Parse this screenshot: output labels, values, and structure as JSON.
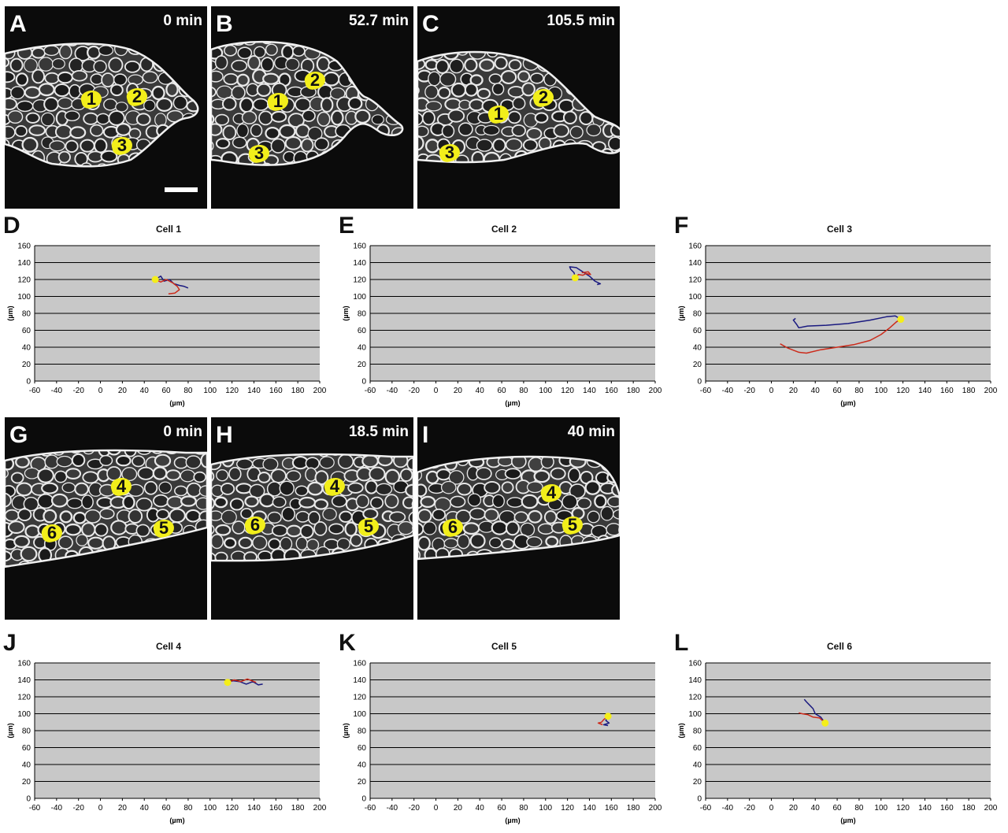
{
  "image_panels": [
    {
      "id": "A",
      "letter": "A",
      "time": "0 min",
      "left": 6,
      "top": 8,
      "cells": [
        {
          "n": "1",
          "x": 95,
          "y": 104
        },
        {
          "n": "2",
          "x": 153,
          "y": 101
        },
        {
          "n": "3",
          "x": 134,
          "y": 163
        }
      ],
      "scalebar": true
    },
    {
      "id": "B",
      "letter": "B",
      "time": "52.7 min",
      "left": 268,
      "top": 8,
      "cells": [
        {
          "n": "1",
          "x": 70,
          "y": 107
        },
        {
          "n": "2",
          "x": 117,
          "y": 80
        },
        {
          "n": "3",
          "x": 46,
          "y": 173
        }
      ],
      "scalebar": false
    },
    {
      "id": "C",
      "letter": "C",
      "time": "105.5 min",
      "left": 530,
      "top": 8,
      "cells": [
        {
          "n": "1",
          "x": 88,
          "y": 123
        },
        {
          "n": "2",
          "x": 145,
          "y": 102
        },
        {
          "n": "3",
          "x": 26,
          "y": 172
        }
      ],
      "scalebar": false
    },
    {
      "id": "G",
      "letter": "G",
      "time": "0 min",
      "left": 6,
      "top": 530,
      "cells": [
        {
          "n": "4",
          "x": 133,
          "y": 74
        },
        {
          "n": "6",
          "x": 45,
          "y": 133
        },
        {
          "n": "5",
          "x": 187,
          "y": 127
        }
      ],
      "scalebar": false
    },
    {
      "id": "H",
      "letter": "H",
      "time": "18.5 min",
      "left": 268,
      "top": 530,
      "cells": [
        {
          "n": "4",
          "x": 142,
          "y": 74
        },
        {
          "n": "6",
          "x": 41,
          "y": 123
        },
        {
          "n": "5",
          "x": 185,
          "y": 125
        }
      ],
      "scalebar": false
    },
    {
      "id": "I",
      "letter": "I",
      "time": "40 min",
      "left": 530,
      "top": 530,
      "cells": [
        {
          "n": "4",
          "x": 155,
          "y": 82
        },
        {
          "n": "6",
          "x": 30,
          "y": 126
        },
        {
          "n": "5",
          "x": 182,
          "y": 123
        }
      ],
      "scalebar": false
    }
  ],
  "chart_data": [
    {
      "type": "line",
      "letter": "D",
      "title": "Cell 1",
      "xlabel": "(µm)",
      "ylabel": "(µm)",
      "xlim": [
        -60,
        200
      ],
      "ylim": [
        0,
        160
      ],
      "xticks": [
        "-60",
        "-40",
        "-20",
        "0",
        "20",
        "40",
        "60",
        "80",
        "100",
        "120",
        "140",
        "160",
        "180",
        "200"
      ],
      "yticks": [
        "0",
        "20",
        "40",
        "60",
        "80",
        "100",
        "120",
        "140",
        "160"
      ],
      "start": [
        50,
        120
      ],
      "series": [
        {
          "color": "#1a1a80",
          "points": [
            [
              50,
              120
            ],
            [
              55,
              124
            ],
            [
              58,
              118
            ],
            [
              63,
              120
            ],
            [
              67,
              115
            ],
            [
              72,
              113
            ],
            [
              76,
              112
            ],
            [
              80,
              110
            ]
          ]
        },
        {
          "color": "#cc2a1a",
          "points": [
            [
              50,
              120
            ],
            [
              55,
              117
            ],
            [
              60,
              120
            ],
            [
              66,
              116
            ],
            [
              70,
              112
            ],
            [
              72,
              108
            ],
            [
              68,
              104
            ],
            [
              62,
              103
            ]
          ]
        }
      ]
    },
    {
      "type": "line",
      "letter": "E",
      "title": "Cell 2",
      "xlabel": "(µm)",
      "ylabel": "(µm)",
      "xlim": [
        -60,
        200
      ],
      "ylim": [
        0,
        160
      ],
      "xticks": [
        "-60",
        "-40",
        "-20",
        "0",
        "20",
        "40",
        "60",
        "80",
        "100",
        "120",
        "140",
        "160",
        "180",
        "200"
      ],
      "yticks": [
        "0",
        "20",
        "40",
        "60",
        "80",
        "100",
        "120",
        "140",
        "160"
      ],
      "start": [
        127,
        122
      ],
      "series": [
        {
          "color": "#1a1a80",
          "points": [
            [
              127,
              122
            ],
            [
              126,
              128
            ],
            [
              123,
              132
            ],
            [
              122,
              135
            ],
            [
              128,
              134
            ],
            [
              134,
              129
            ],
            [
              140,
              124
            ],
            [
              145,
              118
            ],
            [
              150,
              115
            ],
            [
              147,
              114
            ]
          ]
        },
        {
          "color": "#cc2a1a",
          "points": [
            [
              127,
              122
            ],
            [
              130,
              126
            ],
            [
              134,
              125
            ],
            [
              137,
              127
            ],
            [
              141,
              126
            ],
            [
              139,
              129
            ],
            [
              133,
              128
            ]
          ]
        }
      ]
    },
    {
      "type": "line",
      "letter": "F",
      "title": "Cell 3",
      "xlabel": "(µm)",
      "ylabel": "(µm)",
      "xlim": [
        -60,
        200
      ],
      "ylim": [
        0,
        160
      ],
      "xticks": [
        "-60",
        "-40",
        "-20",
        "0",
        "20",
        "40",
        "60",
        "80",
        "100",
        "120",
        "140",
        "160",
        "180",
        "200"
      ],
      "yticks": [
        "0",
        "20",
        "40",
        "60",
        "80",
        "100",
        "120",
        "140",
        "160"
      ],
      "start": [
        118,
        73
      ],
      "series": [
        {
          "color": "#1a1a80",
          "points": [
            [
              118,
              73
            ],
            [
              113,
              77
            ],
            [
              105,
              76
            ],
            [
              90,
              72
            ],
            [
              70,
              68
            ],
            [
              50,
              66
            ],
            [
              33,
              65
            ],
            [
              25,
              63
            ],
            [
              23,
              67
            ],
            [
              20,
              72
            ],
            [
              22,
              74
            ]
          ]
        },
        {
          "color": "#cc2a1a",
          "points": [
            [
              118,
              73
            ],
            [
              114,
              70
            ],
            [
              108,
              63
            ],
            [
              100,
              55
            ],
            [
              90,
              48
            ],
            [
              75,
              43
            ],
            [
              60,
              40
            ],
            [
              45,
              37
            ],
            [
              32,
              33
            ],
            [
              25,
              34
            ],
            [
              15,
              39
            ],
            [
              8,
              44
            ]
          ]
        }
      ]
    },
    {
      "type": "line",
      "letter": "J",
      "title": "Cell 4",
      "xlabel": "(µm)",
      "ylabel": "(µm)",
      "xlim": [
        -60,
        200
      ],
      "ylim": [
        0,
        160
      ],
      "xticks": [
        "-60",
        "-40",
        "-20",
        "0",
        "20",
        "40",
        "60",
        "80",
        "100",
        "120",
        "140",
        "160",
        "180",
        "200"
      ],
      "yticks": [
        "0",
        "20",
        "40",
        "60",
        "80",
        "100",
        "120",
        "140",
        "160"
      ],
      "start": [
        116,
        137
      ],
      "series": [
        {
          "color": "#1a1a80",
          "points": [
            [
              116,
              137
            ],
            [
              121,
              139
            ],
            [
              127,
              138
            ],
            [
              133,
              135
            ],
            [
              139,
              138
            ],
            [
              144,
              134
            ],
            [
              148,
              135
            ]
          ]
        },
        {
          "color": "#cc2a1a",
          "points": [
            [
              116,
              137
            ],
            [
              122,
              140
            ],
            [
              128,
              138
            ],
            [
              134,
              141
            ],
            [
              138,
              139
            ],
            [
              142,
              137
            ]
          ]
        }
      ]
    },
    {
      "type": "line",
      "letter": "K",
      "title": "Cell 5",
      "xlabel": "(µm)",
      "ylabel": "(µm)",
      "xlim": [
        -60,
        200
      ],
      "ylim": [
        0,
        160
      ],
      "xticks": [
        "-60",
        "-40",
        "-20",
        "0",
        "20",
        "40",
        "60",
        "80",
        "100",
        "120",
        "140",
        "160",
        "180",
        "200"
      ],
      "yticks": [
        "0",
        "20",
        "40",
        "60",
        "80",
        "100",
        "120",
        "140",
        "160"
      ],
      "start": [
        157,
        97
      ],
      "series": [
        {
          "color": "#1a1a80",
          "points": [
            [
              157,
              97
            ],
            [
              155,
              92
            ],
            [
              158,
              89
            ],
            [
              153,
              87
            ],
            [
              157,
              86
            ]
          ]
        },
        {
          "color": "#cc2a1a",
          "points": [
            [
              157,
              97
            ],
            [
              153,
              93
            ],
            [
              151,
              90
            ],
            [
              148,
              89
            ],
            [
              152,
              87
            ]
          ]
        }
      ]
    },
    {
      "type": "line",
      "letter": "L",
      "title": "Cell 6",
      "xlabel": "(µm)",
      "ylabel": "(µm)",
      "xlim": [
        -60,
        200
      ],
      "ylim": [
        0,
        160
      ],
      "xticks": [
        "-60",
        "-40",
        "-20",
        "0",
        "20",
        "40",
        "60",
        "80",
        "100",
        "120",
        "140",
        "160",
        "180",
        "200"
      ],
      "yticks": [
        "0",
        "20",
        "40",
        "60",
        "80",
        "100",
        "120",
        "140",
        "160"
      ],
      "start": [
        49,
        89
      ],
      "series": [
        {
          "color": "#1a1a80",
          "points": [
            [
              49,
              89
            ],
            [
              45,
              96
            ],
            [
              40,
              100
            ],
            [
              38,
              106
            ],
            [
              35,
              110
            ],
            [
              32,
              114
            ],
            [
              30,
              117
            ]
          ]
        },
        {
          "color": "#cc2a1a",
          "points": [
            [
              49,
              89
            ],
            [
              44,
              95
            ],
            [
              38,
              96
            ],
            [
              33,
              99
            ],
            [
              28,
              100
            ],
            [
              25,
              101
            ]
          ]
        }
      ]
    }
  ]
}
